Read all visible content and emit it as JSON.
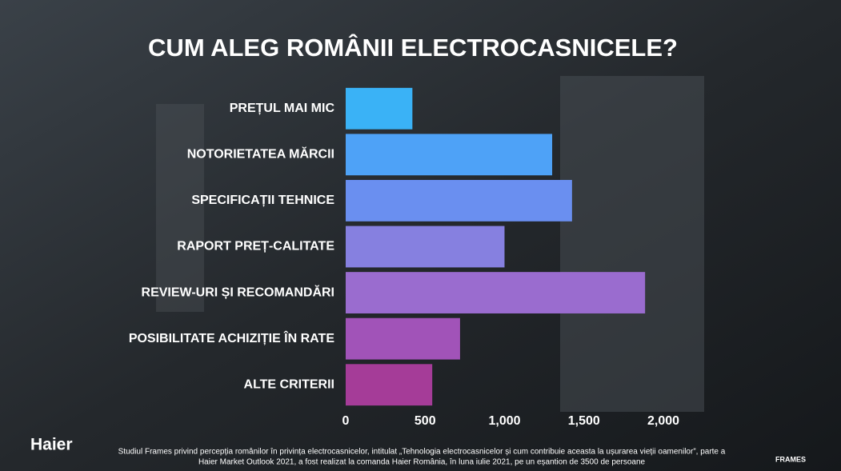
{
  "chart_data": {
    "type": "hbar",
    "title": "CUM ALEG ROMÂNII ELECTROCASNICELE?",
    "categories": [
      "PREȚUL MAI MIC",
      "NOTORIETATEA MĂRCII",
      "SPECIFICAȚII TEHNICE",
      "RAPORT PREȚ-CALITATE",
      "REVIEW-URI ȘI RECOMANDĂRI",
      "POSIBILITATE ACHIZIȚIE ÎN RATE",
      "ALTE CRITERII"
    ],
    "values": [
      420,
      1300,
      1425,
      1000,
      1885,
      720,
      545
    ],
    "colors": [
      "#3ab2f6",
      "#4ea2f7",
      "#6a8ff0",
      "#8680e0",
      "#9a6ccf",
      "#a153b8",
      "#a53c98"
    ],
    "xlim": [
      0,
      2000
    ],
    "xticks": [
      0,
      500,
      {
        "value": 1000,
        "label": "1,000"
      },
      {
        "value": 1500,
        "label": "1,500"
      },
      {
        "value": 2000,
        "label": "2,000"
      }
    ],
    "grid": false
  },
  "brand": "Haier",
  "partner": "FRAMES",
  "footnote": [
    "Studiul Frames privind percepția românilor în privința electrocasnicelor, intitulat „Tehnologia electrocasnicelor și cum contribuie aceasta la ușurarea vieții oamenilor”, parte a",
    "Haier Market Outlook 2021, a fost realizat la comanda Haier România, în luna iulie 2021, pe un eșantion de 3500 de persoane"
  ]
}
